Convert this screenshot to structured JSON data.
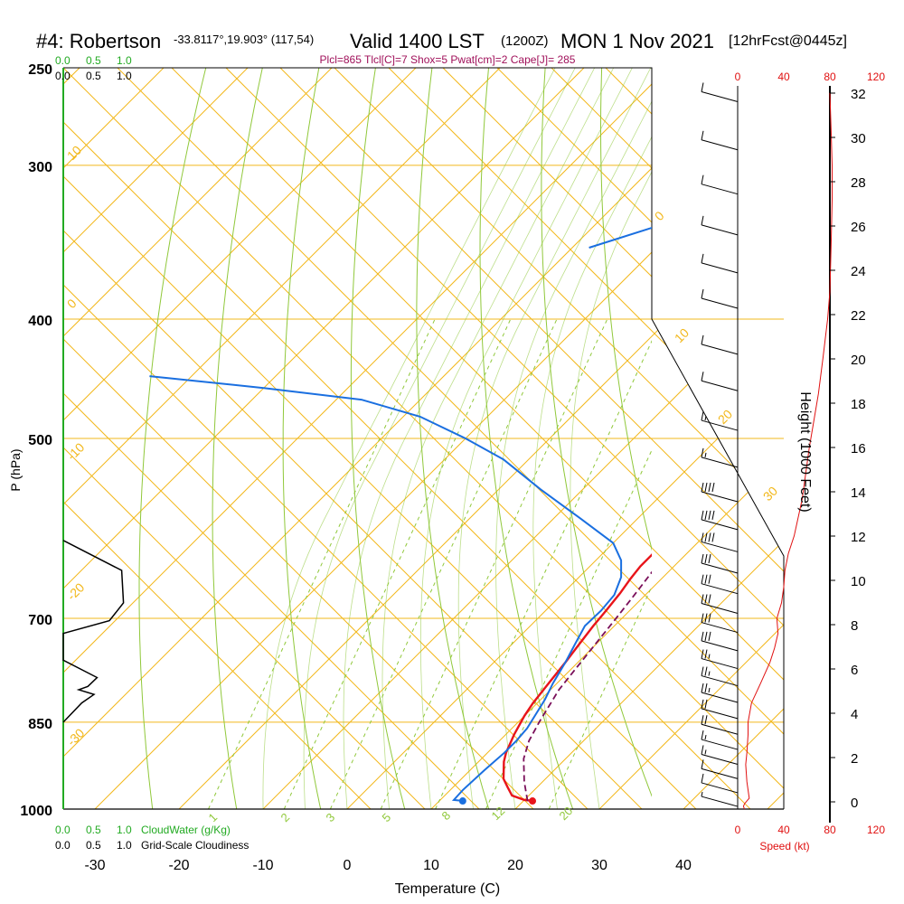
{
  "header": {
    "station": "#4: Robertson",
    "coords": "-33.8117°,19.903° (117,54)",
    "valid": "Valid 1400 LST",
    "utc": "(1200Z)",
    "date": "MON 1 Nov 2021",
    "forecast": "[12hrFcst@0445z]",
    "indices": "Plcl=865 Tlcl[C]=7 Shox=5 Pwat[cm]=2 Cape[J]= 285"
  },
  "colors": {
    "isotherm": "#f2b81c",
    "dryadiabat": "#90c83a",
    "mixing": "#90c83a",
    "temperature": "#e8141a",
    "dewpoint": "#1a6fe0",
    "parcel": "#7a0f5a",
    "cloud": "#22aa22",
    "speed": "#e01010",
    "header_indices": "#a0105a"
  },
  "left_scales": {
    "top_cloudwater": [
      "0.0",
      "0.5",
      "1.0"
    ],
    "top_cloudiness": [
      "0.0",
      "0.5",
      "1.0"
    ],
    "bottom_cloudwater": [
      "0.0",
      "0.5",
      "1.0"
    ],
    "bottom_cloudwater_label": "CloudWater (g/Kg)",
    "bottom_cloudiness": [
      "0.0",
      "0.5",
      "1.0"
    ],
    "bottom_cloudiness_label": "Grid-Scale Cloudiness"
  },
  "speed_axis": {
    "top_ticks": [
      "0",
      "40",
      "80",
      "120"
    ],
    "bottom_ticks": [
      "0",
      "40",
      "80",
      "120"
    ],
    "label": "Speed (kt)"
  },
  "chart_data": {
    "type": "line",
    "xlabel": "Temperature (C)",
    "ylabel": "P (hPa)",
    "y2label": "Height (1000 Feet)",
    "xlim": [
      -34,
      36
    ],
    "ylim": [
      250,
      1000
    ],
    "x_ticks": [
      -30,
      -20,
      -10,
      0,
      10,
      20,
      30,
      40
    ],
    "y_ticks": [
      250,
      300,
      400,
      500,
      700,
      850,
      1000
    ],
    "height_ticks": [
      0,
      2,
      4,
      6,
      8,
      10,
      12,
      14,
      16,
      18,
      20,
      22,
      24,
      26,
      28,
      30,
      32
    ],
    "isotherm_labels": [
      {
        "label": "10",
        "t": -30
      },
      {
        "label": "0",
        "t": -40
      },
      {
        "label": "-10",
        "t": -50
      },
      {
        "label": "-20",
        "t": -60
      },
      {
        "label": "-30",
        "t": -70
      },
      {
        "label": "0",
        "t": 0
      },
      {
        "label": "10",
        "t": 10
      },
      {
        "label": "20",
        "t": 20
      },
      {
        "label": "30",
        "t": 30
      }
    ],
    "mixing_ratio_labels": [
      "1",
      "2",
      "3",
      "5",
      "8",
      "12",
      "20"
    ],
    "series": [
      {
        "name": "temperature",
        "points": [
          [
            21.3,
            985
          ],
          [
            20,
            983
          ],
          [
            18,
            975
          ],
          [
            16.5,
            960
          ],
          [
            15,
            945
          ],
          [
            13,
            915
          ],
          [
            12.2,
            900
          ],
          [
            11,
            870
          ],
          [
            10,
            840
          ],
          [
            9.5,
            820
          ],
          [
            9,
            790
          ],
          [
            8.5,
            760
          ],
          [
            8,
            735
          ],
          [
            7.5,
            710
          ],
          [
            7.2,
            690
          ],
          [
            6.8,
            668
          ],
          [
            6.3,
            650
          ],
          [
            6,
            635
          ],
          [
            6,
            620
          ],
          [
            6.2,
            605
          ],
          [
            6.5,
            590
          ],
          [
            7,
            565
          ],
          [
            7.5,
            540
          ],
          [
            7.5,
            515
          ],
          [
            7.2,
            490
          ],
          [
            6.8,
            465
          ],
          [
            6.2,
            440
          ],
          [
            5.2,
            415
          ],
          [
            4.2,
            390
          ],
          [
            3.2,
            370
          ],
          [
            2.2,
            350
          ],
          [
            1.3,
            330
          ],
          [
            0.6,
            315
          ],
          [
            0.2,
            300
          ],
          [
            0,
            290
          ],
          [
            -0.1,
            280
          ],
          [
            -0.2,
            270
          ],
          [
            -0.3,
            262
          ]
        ]
      },
      {
        "name": "dewpoint",
        "points": [
          [
            13,
            985
          ],
          [
            11.6,
            983
          ],
          [
            11.5,
            965
          ],
          [
            11.7,
            930
          ],
          [
            12,
            900
          ],
          [
            12,
            880
          ],
          [
            11.8,
            860
          ],
          [
            10.5,
            815
          ],
          [
            9.5,
            790
          ],
          [
            8.5,
            760
          ],
          [
            7.5,
            735
          ],
          [
            6.5,
            710
          ],
          [
            6.6,
            690
          ],
          [
            6.3,
            670
          ],
          [
            5,
            648
          ],
          [
            3,
            628
          ],
          [
            0,
            608
          ],
          [
            -7,
            580
          ],
          [
            -15,
            550
          ],
          [
            -23,
            520
          ],
          [
            -30,
            500
          ],
          [
            -38,
            480
          ],
          [
            -47,
            465
          ],
          [
            -60,
            455
          ],
          [
            -75,
            445
          ]
        ]
      },
      {
        "name": "cloudwater",
        "points": [
          [
            0,
            250
          ],
          [
            0,
            1000
          ]
        ]
      }
    ],
    "parcel": [
      [
        20.5,
        985
      ],
      [
        17.8,
        950
      ],
      [
        15,
        910
      ],
      [
        13.5,
        880
      ],
      [
        12.5,
        850
      ],
      [
        11,
        800
      ],
      [
        10,
        740
      ],
      [
        9.3,
        700
      ],
      [
        8.7,
        670
      ],
      [
        7.9,
        635
      ],
      [
        7.2,
        610
      ],
      [
        6.5,
        585
      ]
    ],
    "surface_temperature": 21.3,
    "surface_dewpoint": 13.0,
    "dewpoint_upper": [
      [
        -38,
        350
      ],
      [
        -32,
        335
      ],
      [
        -29,
        320
      ],
      [
        -27,
        303
      ],
      [
        -26,
        290
      ],
      [
        -25.7,
        275
      ],
      [
        -25.7,
        260
      ]
    ],
    "cloudiness": [
      [
        0,
        605
      ],
      [
        0.95,
        640
      ],
      [
        0.98,
        680
      ],
      [
        0.75,
        703
      ],
      [
        0,
        720
      ],
      [
        0,
        757
      ],
      [
        0.55,
        782
      ],
      [
        0.4,
        795
      ],
      [
        0.25,
        800
      ],
      [
        0.5,
        807
      ],
      [
        0.3,
        820
      ],
      [
        0,
        850
      ]
    ],
    "wind_speed": [
      [
        6,
        1000
      ],
      [
        5,
        995
      ],
      [
        6,
        990
      ],
      [
        10,
        980
      ],
      [
        8,
        950
      ],
      [
        7,
        920
      ],
      [
        8,
        900
      ],
      [
        9,
        870
      ],
      [
        9,
        850
      ],
      [
        12,
        820
      ],
      [
        20,
        790
      ],
      [
        28,
        760
      ],
      [
        32,
        740
      ],
      [
        35,
        720
      ],
      [
        34,
        700
      ],
      [
        38,
        680
      ],
      [
        40,
        660
      ],
      [
        41,
        640
      ],
      [
        44,
        620
      ],
      [
        49,
        600
      ],
      [
        56,
        560
      ],
      [
        62,
        510
      ],
      [
        70,
        460
      ],
      [
        74,
        430
      ],
      [
        78,
        400
      ],
      [
        80,
        380
      ],
      [
        81,
        350
      ],
      [
        82,
        320
      ],
      [
        82,
        300
      ],
      [
        81,
        280
      ],
      [
        80,
        262
      ]
    ],
    "winds": [
      {
        "p": 265,
        "spd": 10
      },
      {
        "p": 290,
        "spd": 10
      },
      {
        "p": 315,
        "spd": 10
      },
      {
        "p": 340,
        "spd": 10
      },
      {
        "p": 365,
        "spd": 10
      },
      {
        "p": 390,
        "spd": 10
      },
      {
        "p": 425,
        "spd": 10
      },
      {
        "p": 455,
        "spd": 10
      },
      {
        "p": 490,
        "spd": 15
      },
      {
        "p": 525,
        "spd": 15
      },
      {
        "p": 560,
        "spd": 40
      },
      {
        "p": 590,
        "spd": 40
      },
      {
        "p": 615,
        "spd": 40
      },
      {
        "p": 640,
        "spd": 30
      },
      {
        "p": 665,
        "spd": 30
      },
      {
        "p": 690,
        "spd": 30
      },
      {
        "p": 715,
        "spd": 30
      },
      {
        "p": 740,
        "spd": 30
      },
      {
        "p": 765,
        "spd": 25
      },
      {
        "p": 790,
        "spd": 25
      },
      {
        "p": 815,
        "spd": 25
      },
      {
        "p": 840,
        "spd": 20
      },
      {
        "p": 865,
        "spd": 20
      },
      {
        "p": 890,
        "spd": 15
      },
      {
        "p": 915,
        "spd": 15
      },
      {
        "p": 940,
        "spd": 10
      },
      {
        "p": 965,
        "spd": 10
      },
      {
        "p": 990,
        "spd": 5
      }
    ]
  }
}
